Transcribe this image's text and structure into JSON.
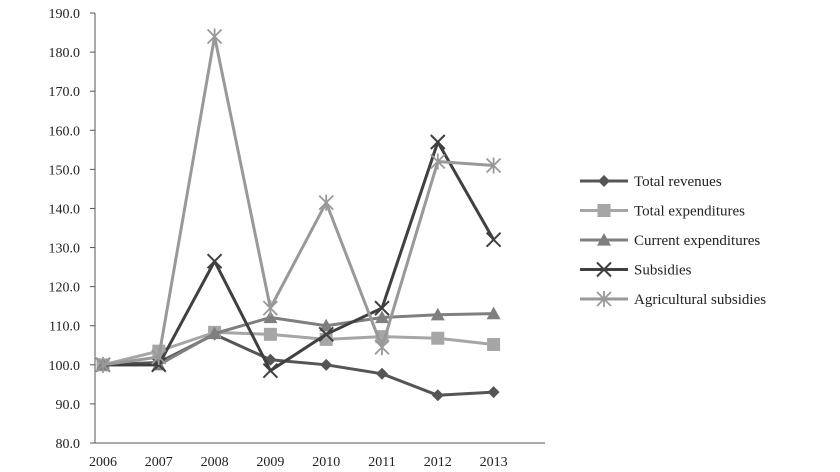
{
  "chart_data": {
    "type": "line",
    "title": "",
    "xlabel": "",
    "ylabel": "",
    "categories": [
      "2006",
      "2007",
      "2008",
      "2009",
      "2010",
      "2011",
      "2012",
      "2013"
    ],
    "ylim": [
      80,
      190
    ],
    "yticks": [
      "80.0",
      "90.0",
      "100.0",
      "110.0",
      "120.0",
      "130.0",
      "140.0",
      "150.0",
      "160.0",
      "170.0",
      "180.0",
      "190.0"
    ],
    "grid": false,
    "legend_position": "right",
    "series": [
      {
        "name": "Total revenues",
        "marker": "diamond",
        "color": "#555555",
        "values": [
          100.0,
          100.6,
          107.8,
          101.3,
          100.0,
          97.7,
          92.2,
          93.0
        ]
      },
      {
        "name": "Total expenditures",
        "marker": "square",
        "color": "#a6a6a6",
        "values": [
          100.0,
          103.5,
          108.3,
          107.8,
          106.5,
          107.2,
          106.8,
          105.2
        ]
      },
      {
        "name": "Current expenditures",
        "marker": "triangle",
        "color": "#7f7f7f",
        "values": [
          100.0,
          100.0,
          108.0,
          112.1,
          110.0,
          112.1,
          112.8,
          113.1
        ]
      },
      {
        "name": "Subsidies",
        "marker": "x",
        "color": "#404040",
        "values": [
          100.0,
          100.0,
          126.5,
          98.5,
          107.8,
          114.5,
          157.0,
          132.0
        ]
      },
      {
        "name": "Agricultural subsidies",
        "marker": "star",
        "color": "#999999",
        "values": [
          100.0,
          102.0,
          184.0,
          114.5,
          141.5,
          104.5,
          152.0,
          151.0
        ]
      }
    ]
  }
}
